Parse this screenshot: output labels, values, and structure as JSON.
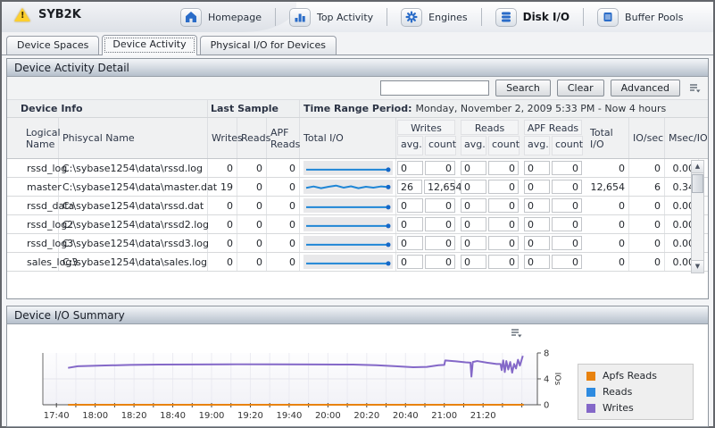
{
  "header": {
    "title": "SYB2K",
    "nav": [
      {
        "label": "Homepage",
        "icon": "home-icon"
      },
      {
        "label": "Top Activity",
        "icon": "bar-chart-icon"
      },
      {
        "label": "Engines",
        "icon": "gears-icon"
      },
      {
        "label": "Disk I/O",
        "icon": "disk-icon",
        "active": true
      },
      {
        "label": "Buffer Pools",
        "icon": "buffer-icon"
      }
    ]
  },
  "tabs": [
    {
      "label": "Device Spaces",
      "active": false
    },
    {
      "label": "Device Activity",
      "active": true
    },
    {
      "label": "Physical I/O for Devices",
      "active": false
    }
  ],
  "detail_panel": {
    "title": "Device Activity Detail",
    "search": {
      "value": "",
      "search_label": "Search",
      "clear_label": "Clear",
      "advanced_label": "Advanced"
    },
    "group_headers": {
      "device_info": "Device Info",
      "last_sample": "Last Sample",
      "time_range_label": "Time Range Period:",
      "time_range_value": "Monday, November 2, 2009  5:33 PM - Now  4 hours"
    },
    "columns": {
      "logical": "Logical Name",
      "physical": "Phisycal Name",
      "writes": "Writes",
      "reads": "Reads",
      "apf_reads": "APF Reads",
      "total_io_spark": "Total I/O",
      "writes_group": "Writes",
      "reads_group": "Reads",
      "apf_group": "APF Reads",
      "avg": "avg.",
      "count": "count",
      "total_io": "Total I/O",
      "io_sec": "IO/sec",
      "msec_io": "Msec/IO"
    },
    "rows": [
      {
        "logical": "rssd_log",
        "physical": "C:\\sybase1254\\data\\rssd.log",
        "writes": "0",
        "reads": "0",
        "apf_reads": "0",
        "w_avg": "0",
        "w_count": "0",
        "r_avg": "0",
        "r_count": "0",
        "a_avg": "0",
        "a_count": "0",
        "total_io": "0",
        "io_sec": "0",
        "msec_io": "0.00",
        "spark": [
          0.62,
          0.62
        ]
      },
      {
        "logical": "master",
        "physical": "C:\\sybase1254\\data\\master.dat",
        "writes": "19",
        "reads": "0",
        "apf_reads": "0",
        "w_avg": "26",
        "w_count": "12,654",
        "r_avg": "0",
        "r_count": "0",
        "a_avg": "0",
        "a_count": "0",
        "total_io": "12,654",
        "io_sec": "6",
        "msec_io": "0.34",
        "spark": [
          0.58,
          0.48,
          0.6,
          0.5,
          0.42,
          0.56,
          0.47,
          0.6,
          0.5,
          0.56,
          0.48,
          0.52
        ]
      },
      {
        "logical": "rssd_data",
        "physical": "C:\\sybase1254\\data\\rssd.dat",
        "writes": "0",
        "reads": "0",
        "apf_reads": "0",
        "w_avg": "0",
        "w_count": "0",
        "r_avg": "0",
        "r_count": "0",
        "a_avg": "0",
        "a_count": "0",
        "total_io": "0",
        "io_sec": "0",
        "msec_io": "0.00",
        "spark": [
          0.62,
          0.62
        ]
      },
      {
        "logical": "rssd_log2",
        "physical": "C:\\sybase1254\\data\\rssd2.log",
        "writes": "0",
        "reads": "0",
        "apf_reads": "0",
        "w_avg": "0",
        "w_count": "0",
        "r_avg": "0",
        "r_count": "0",
        "a_avg": "0",
        "a_count": "0",
        "total_io": "0",
        "io_sec": "0",
        "msec_io": "0.00",
        "spark": [
          0.62,
          0.62
        ]
      },
      {
        "logical": "rssd_log3",
        "physical": "C:\\sybase1254\\data\\rssd3.log",
        "writes": "0",
        "reads": "0",
        "apf_reads": "0",
        "w_avg": "0",
        "w_count": "0",
        "r_avg": "0",
        "r_count": "0",
        "a_avg": "0",
        "a_count": "0",
        "total_io": "0",
        "io_sec": "0",
        "msec_io": "0.00",
        "spark": [
          0.62,
          0.62
        ]
      },
      {
        "logical": "sales_log3",
        "physical": "C:\\sybase1254\\data\\sales.log",
        "writes": "0",
        "reads": "0",
        "apf_reads": "0",
        "w_avg": "0",
        "w_count": "0",
        "r_avg": "0",
        "r_count": "0",
        "a_avg": "0",
        "a_count": "0",
        "total_io": "0",
        "io_sec": "0",
        "msec_io": "0.00",
        "spark": [
          0.62,
          0.62
        ]
      }
    ]
  },
  "summary_panel": {
    "title": "Device I/O Summary"
  },
  "chart_data": {
    "type": "line",
    "title": "Device I/O Summary",
    "x_axis": {
      "unit": "minutes since 17:33",
      "range": [
        0,
        255
      ],
      "ticks": [
        {
          "label": "17:40",
          "m": 7
        },
        {
          "label": "18:00",
          "m": 27
        },
        {
          "label": "18:20",
          "m": 47
        },
        {
          "label": "18:40",
          "m": 67
        },
        {
          "label": "19:00",
          "m": 87
        },
        {
          "label": "19:20",
          "m": 107
        },
        {
          "label": "19:40",
          "m": 127
        },
        {
          "label": "20:00",
          "m": 147
        },
        {
          "label": "20:20",
          "m": 167
        },
        {
          "label": "20:40",
          "m": 187
        },
        {
          "label": "21:00",
          "m": 207
        },
        {
          "label": "21:20",
          "m": 227
        }
      ],
      "minor_tick_step": 10
    },
    "y_axis": {
      "label": "IOs",
      "ticks": [
        0,
        4,
        8
      ],
      "range": [
        0,
        8
      ],
      "side": "right"
    },
    "legend": {
      "position": "right",
      "entries": [
        {
          "label": "Apfs Reads",
          "color": "#e8820e"
        },
        {
          "label": "Reads",
          "color": "#2e8be0"
        },
        {
          "label": "Writes",
          "color": "#8468c8"
        }
      ]
    },
    "series": [
      {
        "name": "Apfs Reads",
        "color": "#e8820e",
        "points": [
          [
            13,
            0
          ],
          [
            248,
            0
          ]
        ]
      },
      {
        "name": "Reads",
        "color": "#2e8be0",
        "points": [
          [
            13,
            0
          ],
          [
            248,
            0
          ]
        ]
      },
      {
        "name": "Writes",
        "color": "#8468c8",
        "points": [
          [
            13,
            5.7
          ],
          [
            18,
            5.95
          ],
          [
            30,
            6.05
          ],
          [
            45,
            6.15
          ],
          [
            60,
            6.2
          ],
          [
            80,
            6.22
          ],
          [
            100,
            6.25
          ],
          [
            120,
            6.25
          ],
          [
            140,
            6.22
          ],
          [
            160,
            6.2
          ],
          [
            172,
            6.1
          ],
          [
            182,
            5.95
          ],
          [
            191,
            5.8
          ],
          [
            198,
            5.85
          ],
          [
            204,
            6.1
          ],
          [
            207,
            6.15
          ],
          [
            207.5,
            6.85
          ],
          [
            213,
            6.7
          ],
          [
            218,
            6.55
          ],
          [
            220.5,
            6.5
          ],
          [
            221,
            4.35
          ],
          [
            221.7,
            6.6
          ],
          [
            224,
            6.75
          ],
          [
            229,
            6.5
          ],
          [
            234,
            6.3
          ],
          [
            236,
            6.3
          ],
          [
            236.6,
            5.35
          ],
          [
            237.4,
            6.85
          ],
          [
            238.2,
            5.05
          ],
          [
            239,
            6.75
          ],
          [
            240,
            5.45
          ],
          [
            241,
            6.6
          ],
          [
            242,
            4.95
          ],
          [
            243,
            6.3
          ],
          [
            244,
            5.6
          ],
          [
            245,
            6.95
          ],
          [
            246,
            6.05
          ],
          [
            247.5,
            7.55
          ]
        ]
      }
    ]
  }
}
